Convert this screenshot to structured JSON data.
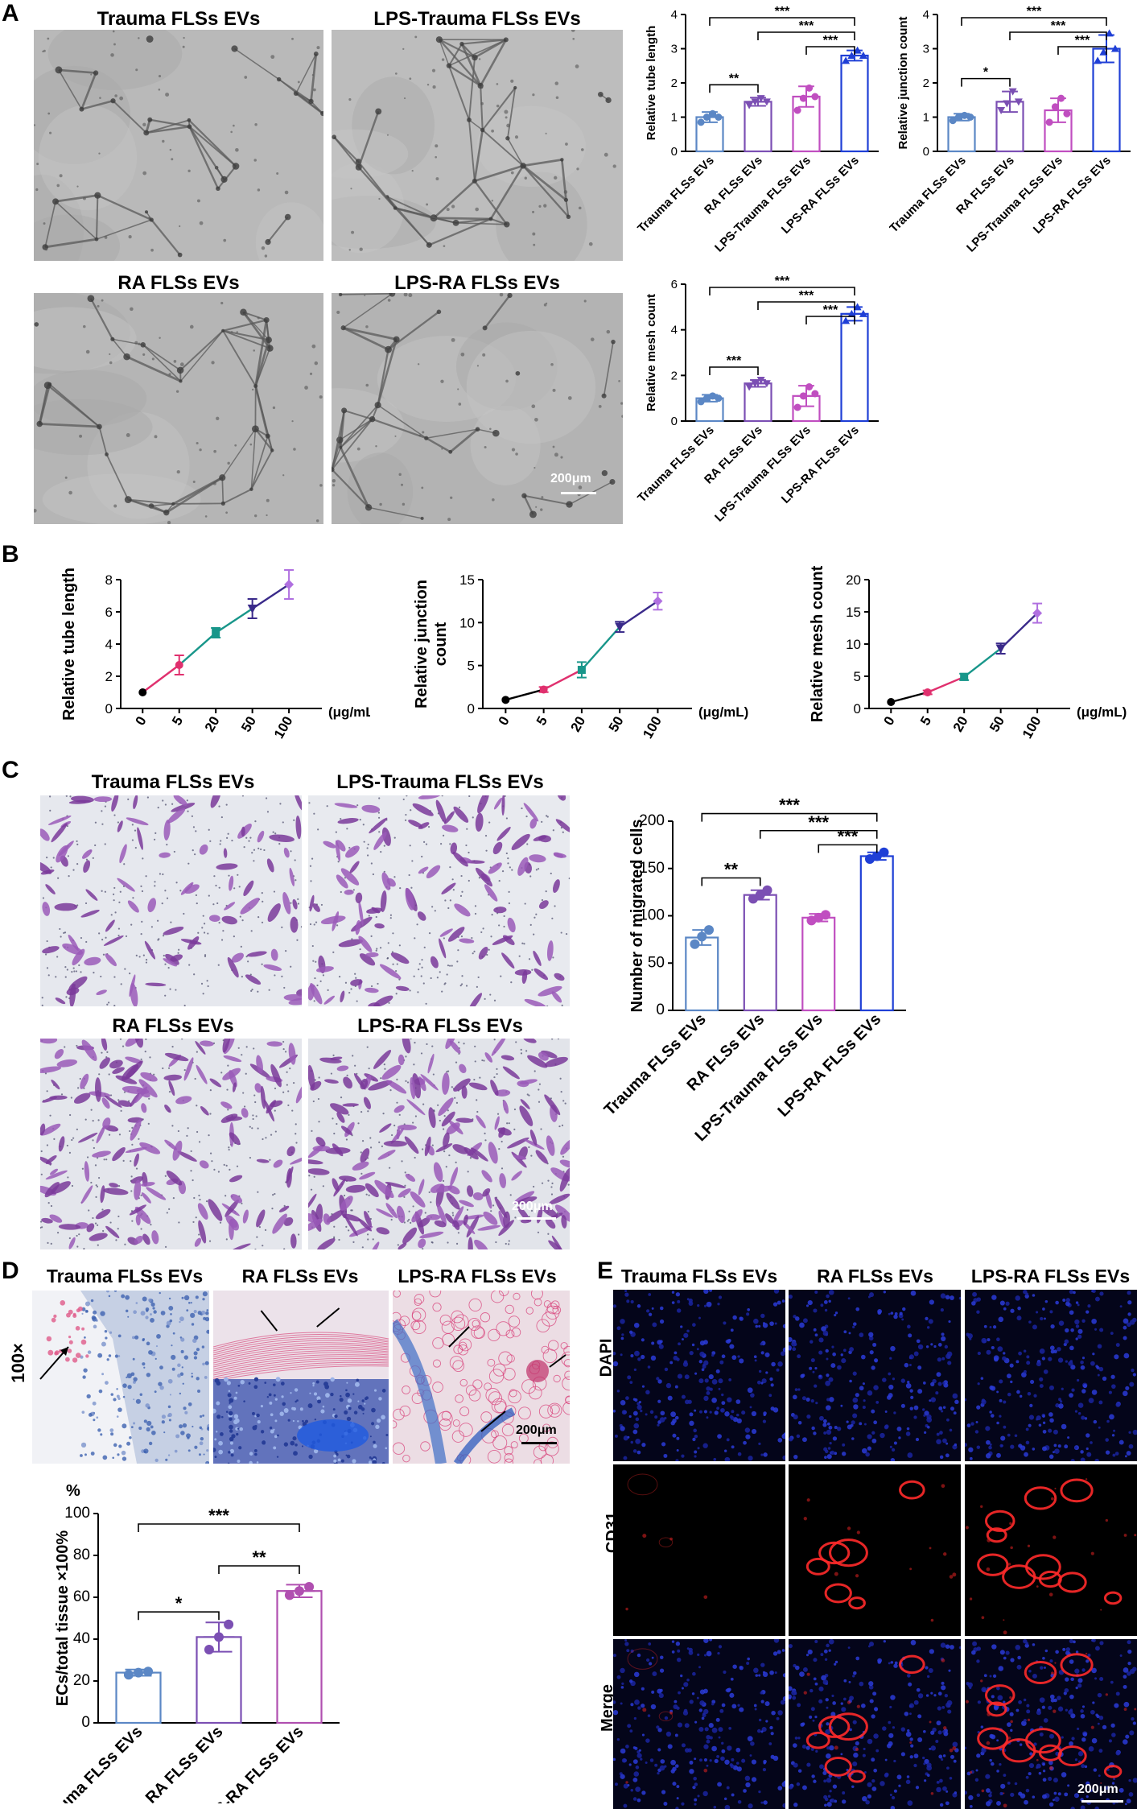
{
  "panels": {
    "A": "A",
    "B": "B",
    "C": "C",
    "D": "D",
    "E": "E"
  },
  "panelA": {
    "images": [
      {
        "title": "Trauma FLSs EVs"
      },
      {
        "title": "LPS-Trauma FLSs EVs"
      },
      {
        "title": "RA FLSs EVs"
      },
      {
        "title": "LPS-RA FLSs EVs"
      }
    ],
    "scalebar": "200μm"
  },
  "panelC": {
    "images": [
      {
        "title": "Trauma FLSs EVs"
      },
      {
        "title": "LPS-Trauma FLSs EVs"
      },
      {
        "title": "RA FLSs EVs"
      },
      {
        "title": "LPS-RA FLSs EVs"
      }
    ],
    "scalebar": "200μm"
  },
  "panelD": {
    "images": [
      {
        "title": "Trauma FLSs EVs"
      },
      {
        "title": "RA FLSs EVs"
      },
      {
        "title": "LPS-RA FLSs EVs"
      }
    ],
    "magnification": "100×",
    "scalebar": "200μm"
  },
  "panelE": {
    "columns": [
      "Trauma FLSs EVs",
      "RA FLSs EVs",
      "LPS-RA FLSs EVs"
    ],
    "rows": [
      "DAPI",
      "CD31",
      "Merge"
    ],
    "scalebar": "200μm"
  },
  "colors": {
    "trauma": "#5b87c5",
    "ra": "#7b4fb3",
    "lps_trauma": "#c04ec0",
    "lps_ra": "#1f3fd6",
    "black": "#000000",
    "pink": "#e0306e",
    "teal": "#18968a",
    "navy": "#3a2a8a",
    "violet": "#b070e0"
  },
  "chart_data": [
    {
      "id": "A-tube",
      "type": "bar",
      "title": "",
      "ylabel": "Relative tube length",
      "categories": [
        "Trauma FLSs EVs",
        "RA FLSs EVs",
        "LPS-Trauma FLSs EVs",
        "LPS-RA FLSs EVs"
      ],
      "values": [
        1.0,
        1.45,
        1.6,
        2.8
      ],
      "errors": [
        0.15,
        0.12,
        0.3,
        0.15
      ],
      "points": [
        [
          0.85,
          1.0,
          1.1,
          1.0
        ],
        [
          1.35,
          1.45,
          1.55,
          1.45
        ],
        [
          1.2,
          1.55,
          1.85,
          1.6
        ],
        [
          2.65,
          2.8,
          2.95,
          2.8
        ]
      ],
      "colors": [
        "#5b87c5",
        "#7b4fb3",
        "#c04ec0",
        "#1f3fd6"
      ],
      "ylim": [
        0,
        4
      ],
      "yticks": [
        0,
        1,
        2,
        3,
        4
      ],
      "significance": [
        {
          "from": 0,
          "to": 1,
          "label": "**"
        },
        {
          "from": 2,
          "to": 3,
          "label": "***"
        },
        {
          "from": 1,
          "to": 3,
          "label": "***"
        },
        {
          "from": 0,
          "to": 3,
          "label": "***"
        }
      ]
    },
    {
      "id": "A-junction",
      "type": "bar",
      "title": "",
      "ylabel": "Relative junction count",
      "categories": [
        "Trauma FLSs EVs",
        "RA FLSs EVs",
        "LPS-Trauma FLSs EVs",
        "LPS-RA FLSs EVs"
      ],
      "values": [
        1.0,
        1.45,
        1.2,
        3.0
      ],
      "errors": [
        0.1,
        0.3,
        0.35,
        0.4
      ],
      "points": [
        [
          0.9,
          1.0,
          1.05,
          1.0
        ],
        [
          1.2,
          1.4,
          1.75,
          1.45
        ],
        [
          0.85,
          1.3,
          1.55,
          1.1
        ],
        [
          2.65,
          2.9,
          3.45,
          3.0
        ]
      ],
      "colors": [
        "#5b87c5",
        "#7b4fb3",
        "#c04ec0",
        "#1f3fd6"
      ],
      "ylim": [
        0,
        4
      ],
      "yticks": [
        0,
        1,
        2,
        3,
        4
      ],
      "significance": [
        {
          "from": 0,
          "to": 1,
          "label": "*"
        },
        {
          "from": 2,
          "to": 3,
          "label": "***"
        },
        {
          "from": 1,
          "to": 3,
          "label": "***"
        },
        {
          "from": 0,
          "to": 3,
          "label": "***"
        }
      ]
    },
    {
      "id": "A-mesh",
      "type": "bar",
      "title": "",
      "ylabel": "Relative mesh count",
      "categories": [
        "Trauma FLSs EVs",
        "RA FLSs EVs",
        "LPS-Trauma FLSs EVs",
        "LPS-RA FLSs EVs"
      ],
      "values": [
        1.0,
        1.65,
        1.1,
        4.7
      ],
      "errors": [
        0.15,
        0.15,
        0.45,
        0.3
      ],
      "points": [
        [
          0.85,
          1.0,
          1.1,
          1.0
        ],
        [
          1.5,
          1.65,
          1.8,
          1.65
        ],
        [
          0.6,
          1.1,
          1.5,
          1.2
        ],
        [
          4.4,
          4.7,
          5.0,
          4.7
        ]
      ],
      "colors": [
        "#5b87c5",
        "#7b4fb3",
        "#c04ec0",
        "#1f3fd6"
      ],
      "ylim": [
        0,
        6
      ],
      "yticks": [
        0,
        2,
        4,
        6
      ],
      "significance": [
        {
          "from": 0,
          "to": 1,
          "label": "***"
        },
        {
          "from": 2,
          "to": 3,
          "label": "***"
        },
        {
          "from": 1,
          "to": 3,
          "label": "***"
        },
        {
          "from": 0,
          "to": 3,
          "label": "***"
        }
      ]
    },
    {
      "id": "B-tube",
      "type": "line",
      "title": "",
      "ylabel": "Relative tube length",
      "xlabel": "μg/mL",
      "x": [
        "0",
        "5",
        "20",
        "50",
        "100"
      ],
      "values": [
        1.0,
        2.7,
        4.7,
        6.2,
        7.7
      ],
      "errors": [
        0.05,
        0.6,
        0.3,
        0.6,
        0.9
      ],
      "segment_colors": [
        "#e0306e",
        "#18968a",
        "#18968a",
        "#3a2a8a"
      ],
      "point_colors": [
        "#000000",
        "#e0306e",
        "#18968a",
        "#3a2a8a",
        "#b070e0"
      ],
      "ylim": [
        0,
        8
      ],
      "yticks": [
        0,
        2,
        4,
        6,
        8
      ]
    },
    {
      "id": "B-junction",
      "type": "line",
      "title": "",
      "ylabel": "Relative junction count",
      "xlabel": "μg/mL",
      "x": [
        "0",
        "5",
        "20",
        "50",
        "100"
      ],
      "values": [
        1.0,
        2.2,
        4.5,
        9.5,
        12.5
      ],
      "errors": [
        0.05,
        0.3,
        0.9,
        0.6,
        1.0
      ],
      "segment_colors": [
        "#000000",
        "#e0306e",
        "#18968a",
        "#3a2a8a"
      ],
      "point_colors": [
        "#000000",
        "#e0306e",
        "#18968a",
        "#3a2a8a",
        "#b070e0"
      ],
      "ylim": [
        0,
        15
      ],
      "yticks": [
        0,
        5,
        10,
        15
      ]
    },
    {
      "id": "B-mesh",
      "type": "line",
      "title": "",
      "ylabel": "Relative mesh count",
      "xlabel": "μg/mL",
      "x": [
        "0",
        "5",
        "20",
        "50",
        "100"
      ],
      "values": [
        1.0,
        2.5,
        4.9,
        9.3,
        14.8
      ],
      "errors": [
        0.05,
        0.3,
        0.5,
        0.8,
        1.5
      ],
      "segment_colors": [
        "#000000",
        "#e0306e",
        "#18968a",
        "#3a2a8a"
      ],
      "point_colors": [
        "#000000",
        "#e0306e",
        "#18968a",
        "#3a2a8a",
        "#b070e0"
      ],
      "ylim": [
        0,
        20
      ],
      "yticks": [
        0,
        5,
        10,
        15,
        20
      ]
    },
    {
      "id": "C-migration",
      "type": "bar",
      "title": "",
      "ylabel": "Number of migrated cells",
      "categories": [
        "Trauma FLSs EVs",
        "RA FLSs EVs",
        "LPS-Trauma FLSs EVs",
        "LPS-RA FLSs EVs"
      ],
      "values": [
        77,
        122,
        98,
        163
      ],
      "errors": [
        8,
        5,
        4,
        4
      ],
      "points": [
        [
          70,
          78,
          85
        ],
        [
          118,
          122,
          127
        ],
        [
          95,
          98,
          101
        ],
        [
          160,
          163,
          167
        ]
      ],
      "colors": [
        "#5b87c5",
        "#7b4fb3",
        "#c04ec0",
        "#1f3fd6"
      ],
      "ylim": [
        0,
        200
      ],
      "yticks": [
        0,
        50,
        100,
        150,
        200
      ],
      "significance": [
        {
          "from": 0,
          "to": 1,
          "label": "**"
        },
        {
          "from": 2,
          "to": 3,
          "label": "***"
        },
        {
          "from": 1,
          "to": 3,
          "label": "***"
        },
        {
          "from": 0,
          "to": 3,
          "label": "***"
        }
      ]
    },
    {
      "id": "D-ecs",
      "type": "bar",
      "title": "",
      "ylabel": "ECs/total tissue ×100%",
      "yunit": "%",
      "categories": [
        "Trauma FLSs EVs",
        "RA FLSs EVs",
        "LPS-RA FLSs EVs"
      ],
      "values": [
        24,
        41,
        63
      ],
      "errors": [
        1.5,
        7,
        3
      ],
      "points": [
        [
          23,
          24,
          24.5
        ],
        [
          35,
          41,
          47
        ],
        [
          61,
          63,
          65
        ]
      ],
      "colors": [
        "#5b87c5",
        "#7b4fb3",
        "#b04fb0"
      ],
      "ylim": [
        0,
        100
      ],
      "yticks": [
        0,
        20,
        40,
        60,
        80,
        100
      ],
      "significance": [
        {
          "from": 0,
          "to": 1,
          "label": "*"
        },
        {
          "from": 1,
          "to": 2,
          "label": "**"
        },
        {
          "from": 0,
          "to": 2,
          "label": "***"
        }
      ]
    }
  ]
}
